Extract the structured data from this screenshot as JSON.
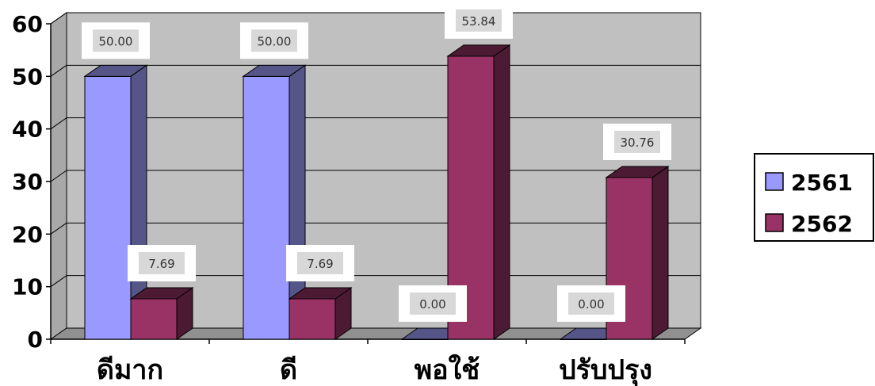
{
  "chart_data": {
    "type": "bar",
    "categories": [
      "ดีมาก",
      "ดี",
      "พอใช้",
      "ปรับปรุง"
    ],
    "series": [
      {
        "name": "2561",
        "values": [
          50.0,
          50.0,
          0.0,
          0.0
        ],
        "labels": [
          "50.00",
          "50.00",
          "0.00",
          "0.00"
        ],
        "color": "#9999ff",
        "side_color": "#555588"
      },
      {
        "name": "2562",
        "values": [
          7.69,
          7.69,
          53.84,
          30.76
        ],
        "labels": [
          "7.69",
          "7.69",
          "53.84",
          "30.76"
        ],
        "color": "#993366",
        "side_color": "#4d1a33"
      }
    ],
    "yticks": [
      "0",
      "10",
      "20",
      "30",
      "40",
      "50",
      "60"
    ],
    "ylim": [
      0,
      60
    ],
    "grid": true,
    "three_d": true,
    "plot_background": "#c0c0c0",
    "legend_position": "right"
  }
}
